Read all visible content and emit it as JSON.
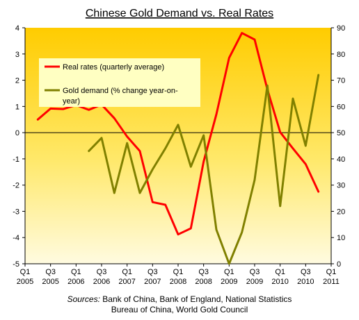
{
  "chart_data": {
    "type": "line",
    "title": "Chinese Gold Demand vs. Real Rates",
    "x_labels": [
      [
        "Q1",
        "2005"
      ],
      [
        "Q3",
        "2005"
      ],
      [
        "Q1",
        "2006"
      ],
      [
        "Q3",
        "2006"
      ],
      [
        "Q1",
        "2007"
      ],
      [
        "Q3",
        "2007"
      ],
      [
        "Q1",
        "2008"
      ],
      [
        "Q3",
        "2008"
      ],
      [
        "Q1",
        "2009"
      ],
      [
        "Q3",
        "2009"
      ],
      [
        "Q1",
        "2010"
      ],
      [
        "Q3",
        "2010"
      ],
      [
        "Q1",
        "2011"
      ]
    ],
    "y_left": {
      "min": -5,
      "max": 4,
      "step": 1
    },
    "y_right": {
      "min": 0,
      "max": 90,
      "step": 10
    },
    "series": [
      {
        "name": "Real rates (quarterly average)",
        "axis": "left",
        "color": "#ff0000",
        "start_quarter": 1,
        "values": [
          0.5,
          0.92,
          0.9,
          1.05,
          0.87,
          1.07,
          0.55,
          -0.15,
          -0.7,
          -2.65,
          -2.75,
          -3.88,
          -3.65,
          -1.1,
          0.7,
          2.85,
          3.8,
          3.55,
          1.65,
          0.02,
          -0.6,
          -1.2,
          -2.25
        ]
      },
      {
        "name": "Gold demand (% change year-on-year)",
        "axis": "right",
        "color": "#808000",
        "start_quarter": 5,
        "values": [
          43,
          48,
          27,
          46,
          27,
          36,
          44,
          53,
          37,
          49,
          13,
          0,
          12,
          32,
          68,
          22,
          63,
          45,
          72
        ]
      }
    ],
    "grid": false,
    "legend_position": "top-left"
  },
  "sources": {
    "prefix": "Sources:",
    "line1": "Bank of China, Bank of England, National Statistics",
    "line2": "Bureau of China, World Gold Council"
  }
}
